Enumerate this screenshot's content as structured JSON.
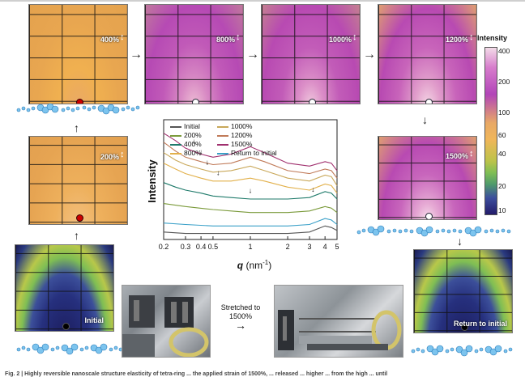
{
  "panels": {
    "p400": "400%",
    "p800": "800%",
    "p1000": "1000%",
    "p1200": "1200%",
    "p200": "200%",
    "p1500": "1500%",
    "initial": "Initial",
    "return": "Return to initial"
  },
  "stretch_label_line1": "Stretched to",
  "stretch_label_line2": "1500%",
  "colorbar": {
    "title": "Intensity",
    "ticks": [
      "400",
      "200",
      "100",
      "60",
      "40",
      "20",
      "10"
    ],
    "colors": {
      "top": "#f3dce8",
      "mid": "#f0b65a",
      "bottom": "#231b6a"
    }
  },
  "caption": "Fig. 2 | Highly reversible nanoscale structure elasticity of tetra-ring ... the applied strain of 1500%, ... released ... higher ... from the high ... until",
  "chart_data": {
    "type": "line",
    "xlabel": "q (nm⁻¹)",
    "ylabel": "Intensity",
    "xscale": "log",
    "xlim": [
      0.2,
      5
    ],
    "x_ticks": [
      "0.2",
      "0.3",
      "0.4",
      "0.5",
      "1",
      "2",
      "3",
      "4",
      "5"
    ],
    "legend": [
      {
        "name": "Initial",
        "color": "#555555"
      },
      {
        "name": "200%",
        "color": "#7a9a3a"
      },
      {
        "name": "400%",
        "color": "#1e7a6a"
      },
      {
        "name": "800%",
        "color": "#e2b04a"
      },
      {
        "name": "1000%",
        "color": "#c9a85a"
      },
      {
        "name": "1200%",
        "color": "#c07a58"
      },
      {
        "name": "1500%",
        "color": "#a0306e"
      },
      {
        "name": "Return to initial",
        "color": "#3aa0c8"
      }
    ],
    "series": [
      {
        "name": "1500%",
        "color": "#a0306e",
        "points": [
          [
            0.2,
            8.6
          ],
          [
            0.25,
            8.1
          ],
          [
            0.3,
            7.6
          ],
          [
            0.4,
            7.2
          ],
          [
            0.5,
            7.0
          ],
          [
            0.7,
            7.2
          ],
          [
            1,
            7.7
          ],
          [
            1.3,
            7.3
          ],
          [
            2,
            6.6
          ],
          [
            3,
            6.4
          ],
          [
            4,
            6.7
          ],
          [
            4.5,
            6.6
          ],
          [
            5,
            6.1
          ]
        ]
      },
      {
        "name": "1200%",
        "color": "#c07a58",
        "points": [
          [
            0.2,
            8.0
          ],
          [
            0.25,
            7.4
          ],
          [
            0.3,
            7.0
          ],
          [
            0.4,
            6.7
          ],
          [
            0.5,
            6.5
          ],
          [
            0.7,
            6.6
          ],
          [
            1,
            7.0
          ],
          [
            1.3,
            6.7
          ],
          [
            2,
            6.1
          ],
          [
            3,
            5.9
          ],
          [
            4,
            6.2
          ],
          [
            4.5,
            6.1
          ],
          [
            5,
            5.6
          ]
        ]
      },
      {
        "name": "1000%",
        "color": "#c9a85a",
        "points": [
          [
            0.2,
            7.3
          ],
          [
            0.25,
            6.8
          ],
          [
            0.3,
            6.5
          ],
          [
            0.4,
            6.2
          ],
          [
            0.5,
            6.0
          ],
          [
            0.7,
            6.1
          ],
          [
            1,
            6.4
          ],
          [
            1.3,
            6.1
          ],
          [
            2,
            5.6
          ],
          [
            3,
            5.4
          ],
          [
            4,
            5.8
          ],
          [
            4.5,
            5.7
          ],
          [
            5,
            5.1
          ]
        ]
      },
      {
        "name": "800%",
        "color": "#e2b04a",
        "points": [
          [
            0.2,
            6.6
          ],
          [
            0.25,
            6.2
          ],
          [
            0.3,
            5.9
          ],
          [
            0.4,
            5.6
          ],
          [
            0.5,
            5.4
          ],
          [
            0.7,
            5.4
          ],
          [
            1,
            5.6
          ],
          [
            1.3,
            5.4
          ],
          [
            2,
            5.0
          ],
          [
            3,
            4.8
          ],
          [
            4,
            5.2
          ],
          [
            4.5,
            5.1
          ],
          [
            5,
            4.6
          ]
        ]
      },
      {
        "name": "400%",
        "color": "#1e7a6a",
        "points": [
          [
            0.2,
            5.3
          ],
          [
            0.25,
            5.0
          ],
          [
            0.3,
            4.8
          ],
          [
            0.4,
            4.6
          ],
          [
            0.5,
            4.4
          ],
          [
            0.7,
            4.3
          ],
          [
            1,
            4.2
          ],
          [
            1.5,
            4.2
          ],
          [
            2,
            4.2
          ],
          [
            3,
            4.3
          ],
          [
            4,
            4.7
          ],
          [
            4.5,
            4.6
          ],
          [
            5,
            4.2
          ]
        ]
      },
      {
        "name": "200%",
        "color": "#7a9a3a",
        "points": [
          [
            0.2,
            3.9
          ],
          [
            0.3,
            3.7
          ],
          [
            0.5,
            3.5
          ],
          [
            0.7,
            3.4
          ],
          [
            1,
            3.3
          ],
          [
            2,
            3.3
          ],
          [
            3,
            3.4
          ],
          [
            4,
            3.7
          ],
          [
            4.5,
            3.6
          ],
          [
            5,
            3.3
          ]
        ]
      },
      {
        "name": "Return to initial",
        "color": "#3aa0c8",
        "points": [
          [
            0.2,
            2.6
          ],
          [
            0.3,
            2.5
          ],
          [
            0.5,
            2.4
          ],
          [
            1,
            2.4
          ],
          [
            2,
            2.4
          ],
          [
            3,
            2.5
          ],
          [
            4,
            2.9
          ],
          [
            4.5,
            2.8
          ],
          [
            5,
            2.5
          ]
        ]
      },
      {
        "name": "Initial",
        "color": "#555555",
        "points": [
          [
            0.2,
            2.0
          ],
          [
            0.3,
            1.9
          ],
          [
            0.5,
            1.9
          ],
          [
            1,
            1.9
          ],
          [
            2,
            1.9
          ],
          [
            3,
            2.0
          ],
          [
            4,
            2.4
          ],
          [
            4.5,
            2.3
          ],
          [
            5,
            2.1
          ]
        ]
      }
    ],
    "annotations": [
      {
        "type": "arrow",
        "x": 0.35,
        "y": 7.9
      },
      {
        "type": "arrow",
        "x": 0.4,
        "y": 7.2
      },
      {
        "type": "arrow",
        "x": 0.45,
        "y": 6.5
      },
      {
        "type": "arrow",
        "x": 0.55,
        "y": 5.8
      },
      {
        "type": "arrow",
        "x": 1.0,
        "y": 4.6
      },
      {
        "type": "arrow",
        "x": 3.2,
        "y": 4.7
      }
    ],
    "ylim": [
      1.5,
      9.5
    ]
  }
}
